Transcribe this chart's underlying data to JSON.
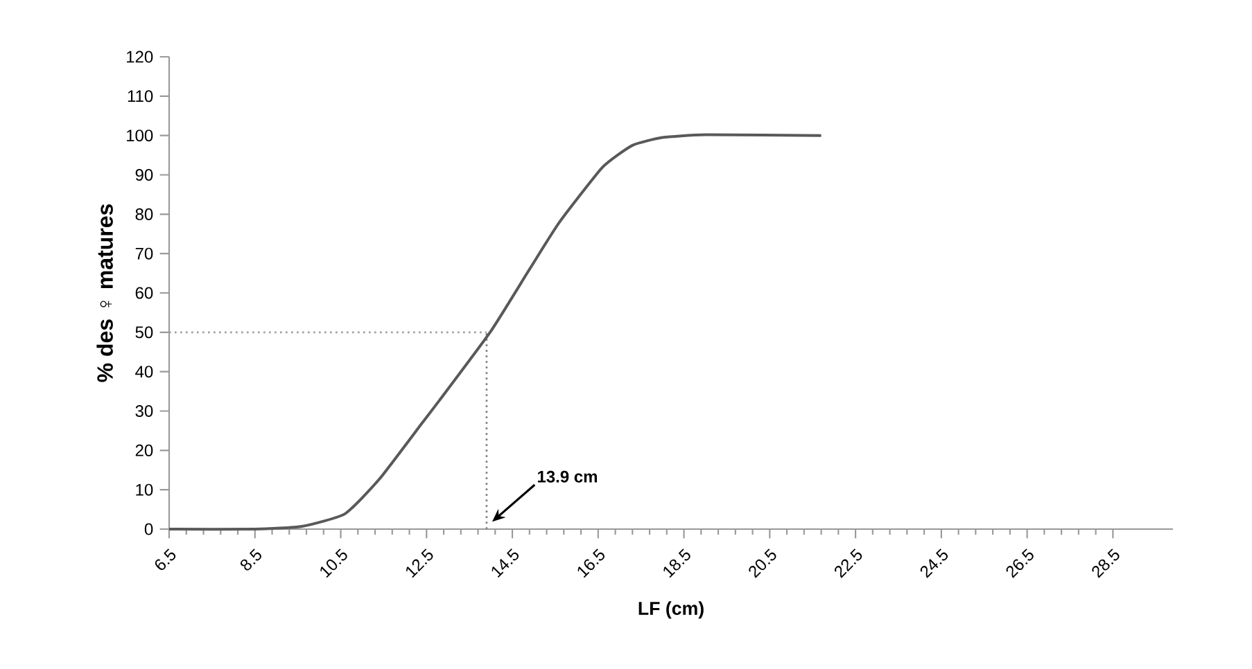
{
  "chart_data": {
    "type": "line",
    "xlabel": "LF (cm)",
    "ylabel": "% des ♀ matures",
    "series": [
      {
        "color": "#595959",
        "x": [
          6.5,
          8.5,
          9.6,
          10.6,
          11.4,
          12.4,
          12.8,
          14.0,
          14.9,
          15.6,
          16.6,
          17.3,
          18.0,
          19.0,
          21.7
        ],
        "values": [
          0,
          0,
          0.7,
          3.9,
          12.7,
          27,
          32.7,
          50.3,
          66,
          78,
          91.9,
          97.5,
          99.5,
          100.2,
          100
        ]
      }
    ],
    "xlim": [
      6.5,
      29.9
    ],
    "xticks": [
      6.5,
      8.5,
      10.5,
      12.5,
      14.5,
      16.5,
      18.5,
      20.5,
      22.5,
      24.5,
      26.5,
      28.5
    ],
    "ylim": [
      0,
      120
    ],
    "yticks": [
      0,
      10,
      20,
      30,
      40,
      50,
      60,
      70,
      80,
      90,
      100,
      110,
      120
    ],
    "grid": false,
    "marker": "none",
    "line_style": "solid",
    "ref_lines": [
      {
        "axis": "y",
        "value": 50,
        "color": "#a0a0a0",
        "line_style": "dotted"
      },
      {
        "axis": "x",
        "value": 13.9,
        "color": "#808080",
        "line_style": "dotted"
      }
    ],
    "annotations": [
      "13.9 cm"
    ]
  }
}
